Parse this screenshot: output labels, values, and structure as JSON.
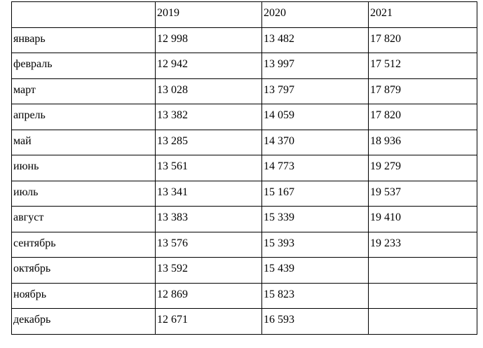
{
  "table": {
    "header": [
      "",
      "2019",
      "2020",
      "2021"
    ],
    "rows": [
      {
        "month": "январь",
        "y2019": "12 998",
        "y2020": "13 482",
        "y2021": "17 820"
      },
      {
        "month": "февраль",
        "y2019": "12 942",
        "y2020": "13 997",
        "y2021": "17 512"
      },
      {
        "month": "март",
        "y2019": "13 028",
        "y2020": "13 797",
        "y2021": "17 879"
      },
      {
        "month": "апрель",
        "y2019": "13 382",
        "y2020": "14 059",
        "y2021": "17 820"
      },
      {
        "month": "май",
        "y2019": "13 285",
        "y2020": "14 370",
        "y2021": "18 936"
      },
      {
        "month": "июнь",
        "y2019": "13 561",
        "y2020": "14 773",
        "y2021": "19 279"
      },
      {
        "month": "июль",
        "y2019": "13 341",
        "y2020": "15 167",
        "y2021": "19 537"
      },
      {
        "month": "август",
        "y2019": "13 383",
        "y2020": "15 339",
        "y2021": "19 410"
      },
      {
        "month": "сентябрь",
        "y2019": "13 576",
        "y2020": "15 393",
        "y2021": "19 233"
      },
      {
        "month": "октябрь",
        "y2019": "13 592",
        "y2020": "15 439",
        "y2021": ""
      },
      {
        "month": "ноябрь",
        "y2019": "12 869",
        "y2020": "15 823",
        "y2021": ""
      },
      {
        "month": "декабрь",
        "y2019": "12 671",
        "y2020": "16 593",
        "y2021": ""
      }
    ]
  }
}
